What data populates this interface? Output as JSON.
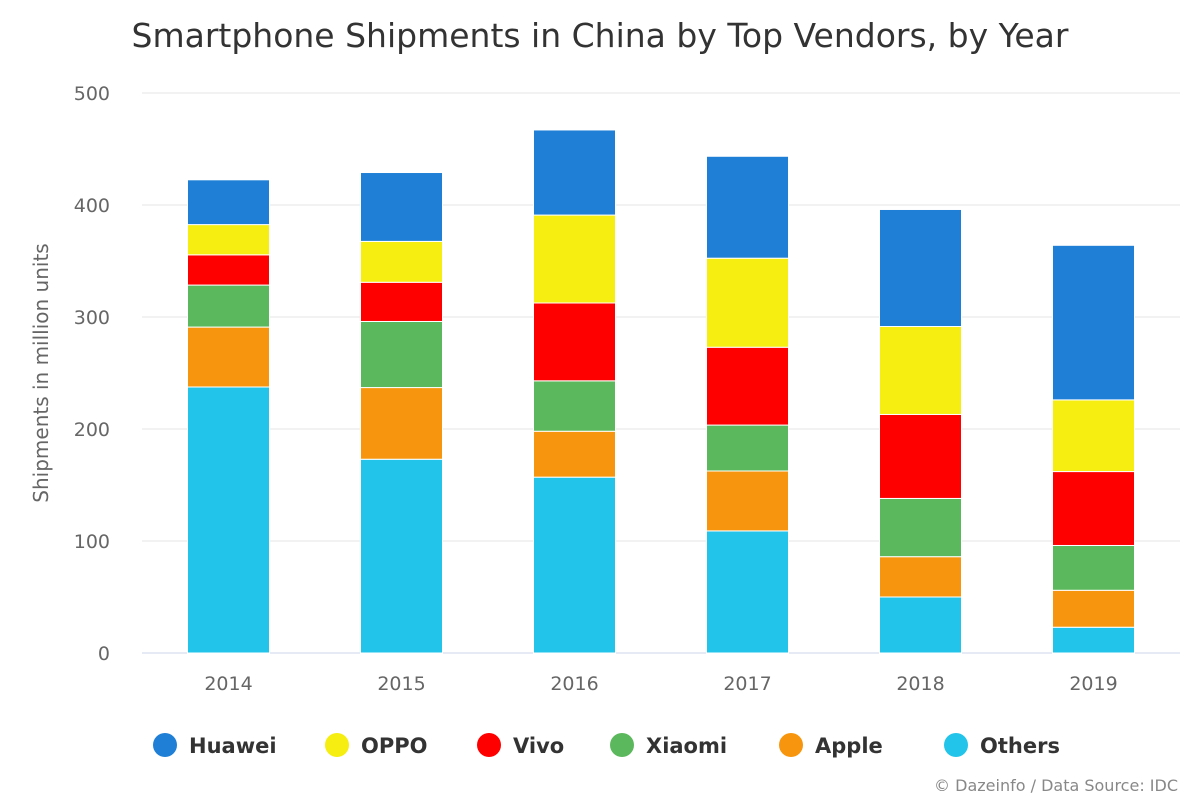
{
  "chart_data": {
    "type": "bar",
    "stacked": true,
    "title": "Smartphone Shipments in China by Top Vendors, by Year",
    "xlabel": "",
    "ylabel": "Shipments in million units",
    "ylim": [
      0,
      500
    ],
    "yticks": [
      "0",
      "100",
      "200",
      "300",
      "400",
      "500"
    ],
    "grid": true,
    "legend_position": "bottom",
    "categories": [
      "2014",
      "2015",
      "2016",
      "2017",
      "2018",
      "2019"
    ],
    "series": [
      {
        "name": "Others",
        "color": "#23c4ea",
        "values": [
          237.5,
          173,
          157,
          109,
          50,
          23
        ]
      },
      {
        "name": "Apple",
        "color": "#f7960e",
        "values": [
          53.5,
          64,
          41,
          53.5,
          36,
          33
        ]
      },
      {
        "name": "Xiaomi",
        "color": "#5cb85c",
        "values": [
          37.5,
          59,
          45,
          41,
          52,
          40
        ]
      },
      {
        "name": "Vivo",
        "color": "#ff0000",
        "values": [
          27,
          35,
          69.5,
          69.5,
          75,
          66
        ]
      },
      {
        "name": "OPPO",
        "color": "#f5ee10",
        "values": [
          27,
          36.5,
          78.5,
          79.5,
          78.5,
          64
        ]
      },
      {
        "name": "Huawei",
        "color": "#1f7fd6",
        "values": [
          40,
          61.5,
          76,
          91,
          104.5,
          138
        ]
      }
    ],
    "legend_order": [
      "Huawei",
      "OPPO",
      "Vivo",
      "Xiaomi",
      "Apple",
      "Others"
    ]
  },
  "credits": "© Dazeinfo / Data Source: IDC"
}
